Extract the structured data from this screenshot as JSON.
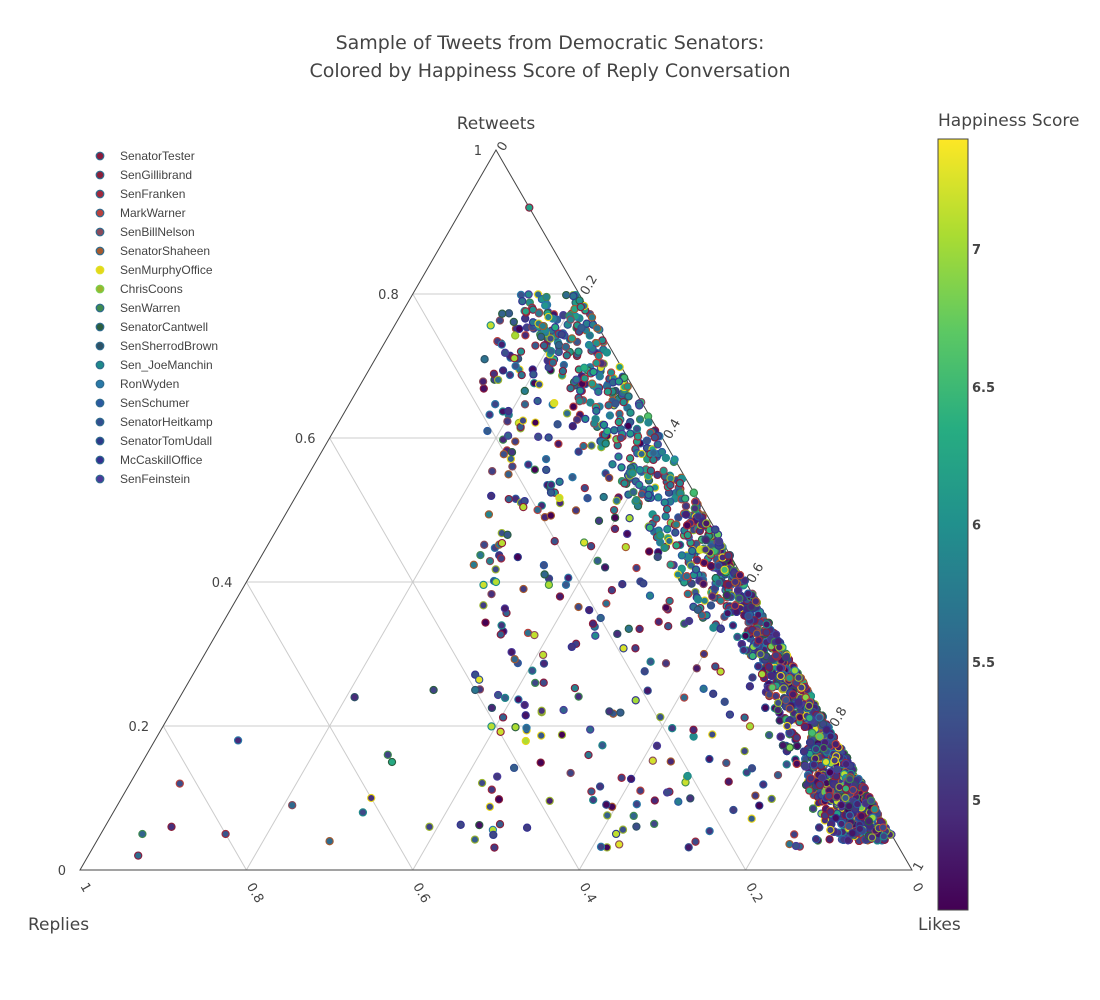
{
  "title_line1": "Sample of Tweets from Democratic Senators:",
  "title_line2": "Colored by Happiness Score of Reply Conversation",
  "chart_data": {
    "type": "scatter",
    "subtype": "ternary",
    "axes": {
      "a": {
        "title": "Retweets",
        "range": [
          0,
          1
        ],
        "ticks": [
          "0",
          "0.2",
          "0.4",
          "0.6",
          "0.8",
          "1"
        ]
      },
      "b": {
        "title": "Replies",
        "range": [
          0,
          1
        ],
        "ticks": [
          "0",
          "0.2",
          "0.4",
          "0.6",
          "0.8",
          "1"
        ]
      },
      "c": {
        "title": "Likes",
        "range": [
          0,
          1
        ],
        "ticks": [
          "0",
          "0.2",
          "0.4",
          "0.6",
          "0.8",
          "1"
        ]
      }
    },
    "grid": true,
    "legend_position": "top-left",
    "series": [
      {
        "name": "SenatorTester",
        "color": "#8b1a3c"
      },
      {
        "name": "SenGillibrand",
        "color": "#8a1f3a"
      },
      {
        "name": "SenFranken",
        "color": "#a0283c"
      },
      {
        "name": "MarkWarner",
        "color": "#b9413d"
      },
      {
        "name": "SenBillNelson",
        "color": "#8a4a5a"
      },
      {
        "name": "SenatorShaheen",
        "color": "#a65a2e"
      },
      {
        "name": "SenMurphyOffice",
        "color": "#e7d51a"
      },
      {
        "name": "ChrisCoons",
        "color": "#9ab52f"
      },
      {
        "name": "SenWarren",
        "color": "#3f8a4f"
      },
      {
        "name": "SenatorCantwell",
        "color": "#2b5e3f"
      },
      {
        "name": "SenSherrodBrown",
        "color": "#2e5266"
      },
      {
        "name": "Sen_JoeManchin",
        "color": "#1f8a8a"
      },
      {
        "name": "RonWyden",
        "color": "#2a79a8"
      },
      {
        "name": "SenSchumer",
        "color": "#2b5aa0"
      },
      {
        "name": "SenatorHeitkamp",
        "color": "#324f8f"
      },
      {
        "name": "SenatorTomUdall",
        "color": "#2d3a8a"
      },
      {
        "name": "McCaskillOffice",
        "color": "#343090"
      },
      {
        "name": "SenFeinstein",
        "color": "#4a3a9a"
      }
    ],
    "point_colorscale": [
      "#440154",
      "#472c7a",
      "#3b518b",
      "#2c718e",
      "#21908d",
      "#27ad81",
      "#5cc863",
      "#aadc32",
      "#fde725"
    ],
    "sample_points": [
      {
        "retweets": 0.92,
        "replies": 0.0,
        "likes": 0.08,
        "happiness": 6.2
      },
      {
        "retweets": 0.72,
        "replies": 0.11,
        "likes": 0.17,
        "happiness": 6.0
      },
      {
        "retweets": 0.6,
        "replies": 0.05,
        "likes": 0.35,
        "happiness": 5.3
      },
      {
        "retweets": 0.5,
        "replies": 0.2,
        "likes": 0.3,
        "happiness": 5.6
      },
      {
        "retweets": 0.38,
        "replies": 0.05,
        "likes": 0.57,
        "happiness": 4.9
      },
      {
        "retweets": 0.3,
        "replies": 0.1,
        "likes": 0.6,
        "happiness": 5.0
      },
      {
        "retweets": 0.2,
        "replies": 0.05,
        "likes": 0.75,
        "happiness": 5.1
      },
      {
        "retweets": 0.1,
        "replies": 0.03,
        "likes": 0.87,
        "happiness": 5.4
      },
      {
        "retweets": 0.05,
        "replies": 0.9,
        "likes": 0.05,
        "happiness": 5.5
      },
      {
        "retweets": 0.15,
        "replies": 0.55,
        "likes": 0.3,
        "happiness": 6.3
      },
      {
        "retweets": 0.25,
        "replies": 0.4,
        "likes": 0.35,
        "happiness": 5.7
      },
      {
        "retweets": 0.4,
        "replies": 0.3,
        "likes": 0.3,
        "happiness": 7.1
      }
    ],
    "colorbar": {
      "title": "Happiness Score",
      "min": 4.6,
      "max": 7.4,
      "tick_values": [
        5,
        5.5,
        6,
        6.5,
        7
      ],
      "tick_labels": [
        "5",
        "5.5",
        "6",
        "6.5",
        "7"
      ]
    }
  }
}
